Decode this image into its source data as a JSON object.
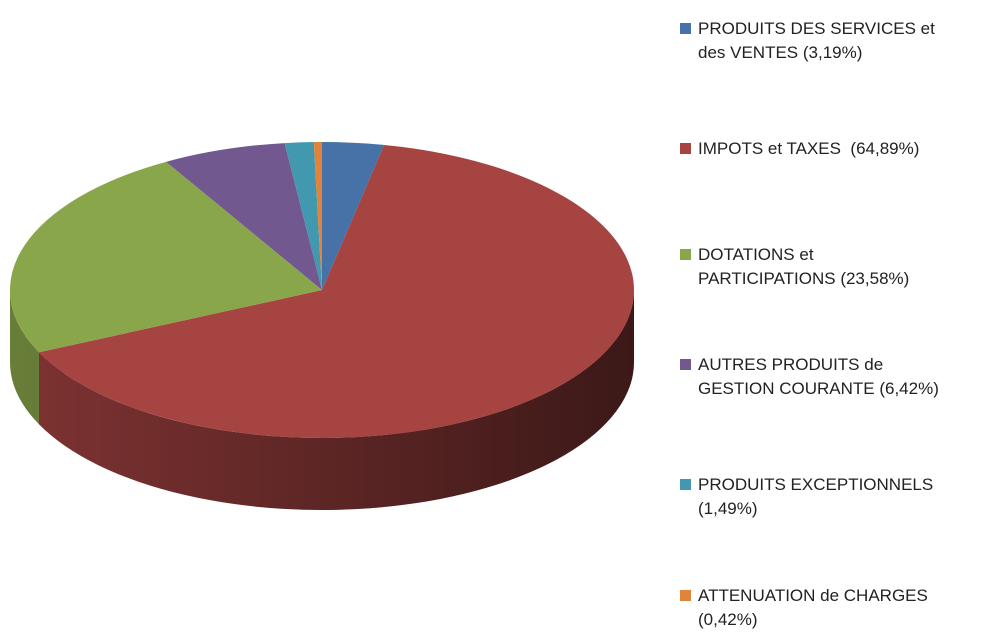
{
  "chart_data": {
    "type": "pie",
    "categories": [
      "PRODUITS DES SERVICES et des VENTES (3,19%)",
      "IMPOTS et TAXES  (64,89%)",
      "DOTATIONS et PARTICIPATIONS (23,58%)",
      "AUTRES PRODUITS de GESTION COURANTE (6,42%)",
      "PRODUITS EXCEPTIONNELS (1,49%)",
      "ATTENUATION de CHARGES (0,42%)"
    ],
    "values": [
      3.19,
      64.89,
      23.58,
      6.42,
      1.49,
      0.42
    ],
    "colors": [
      "#4672a8",
      "#a64442",
      "#8aa64a",
      "#71588f",
      "#4198af",
      "#e0843a"
    ],
    "legend": "right"
  }
}
